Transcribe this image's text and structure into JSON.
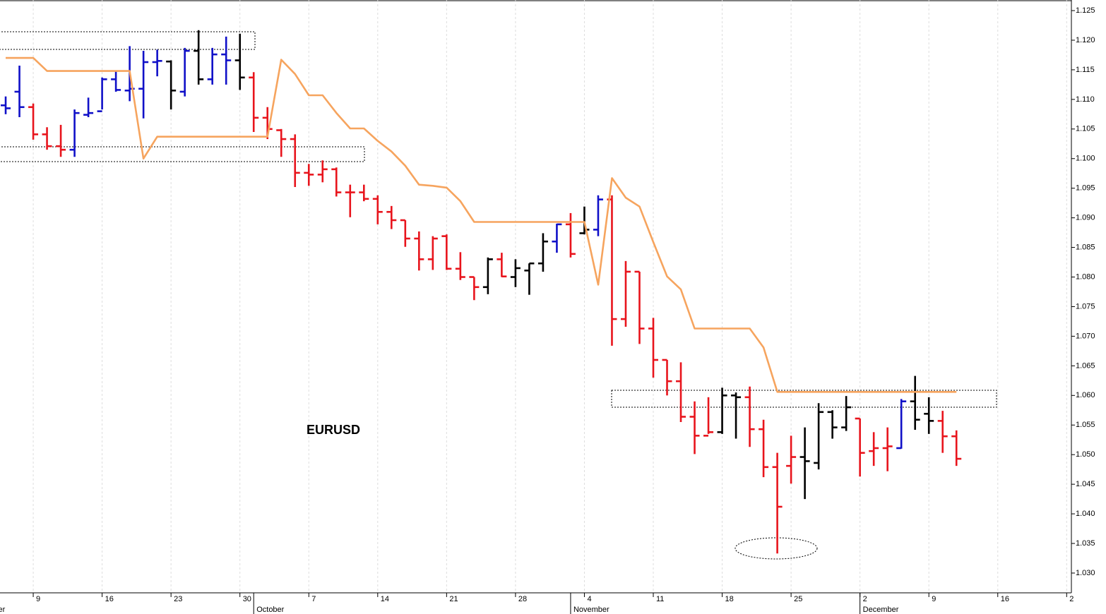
{
  "chart_data": {
    "type": "ohlc",
    "annotation": "EURUSD",
    "categories": [
      null,
      null,
      null,
      null,
      null,
      "9",
      null,
      null,
      null,
      null,
      "16",
      null,
      null,
      null,
      null,
      "23",
      null,
      null,
      null,
      null,
      "30",
      null,
      null,
      null,
      null,
      "7",
      null,
      null,
      null,
      null,
      "14",
      null,
      null,
      null,
      null,
      "21",
      null,
      null,
      null,
      null,
      "28",
      null,
      null,
      null,
      null,
      "4",
      null,
      null,
      null,
      null,
      "11",
      null,
      null,
      null,
      null,
      "18",
      null,
      null,
      null,
      null,
      "25",
      null,
      null,
      null,
      null,
      "2",
      null,
      null,
      null,
      null,
      "9",
      null,
      null,
      null,
      null,
      "16",
      null,
      null,
      null,
      null,
      "2"
    ],
    "month_labels": [
      "September",
      null,
      null,
      null,
      null,
      null,
      null,
      null,
      null,
      null,
      null,
      null,
      null,
      null,
      null,
      null,
      null,
      null,
      null,
      null,
      null,
      "October",
      null,
      null,
      null,
      null,
      null,
      null,
      null,
      null,
      null,
      null,
      null,
      null,
      null,
      null,
      null,
      null,
      null,
      null,
      null,
      null,
      null,
      null,
      "November",
      null,
      null,
      null,
      null,
      null,
      null,
      null,
      null,
      null,
      null,
      null,
      null,
      null,
      null,
      null,
      null,
      null,
      null,
      null,
      null,
      "December",
      null,
      null,
      null,
      null,
      null,
      null,
      null,
      null,
      null,
      null,
      null,
      null,
      null,
      null,
      null
    ],
    "open": [
      null,
      null,
      null,
      1.109,
      1.1113,
      1.1087,
      1.1041,
      1.1021,
      1.1015,
      1.1074,
      1.108,
      1.1134,
      1.1115,
      1.1118,
      1.1163,
      1.1164,
      1.1113,
      1.1182,
      1.1134,
      1.1176,
      1.1166,
      1.1137,
      1.1069,
      1.1048,
      1.1033,
      1.0976,
      1.0973,
      1.0982,
      1.0943,
      1.0943,
      1.0932,
      1.091,
      1.0896,
      1.0865,
      1.083,
      1.0869,
      1.0814,
      1.08,
      1.0783,
      1.083,
      1.08,
      1.0811,
      1.0823,
      1.086,
      1.0889,
      1.0874,
      1.088,
      1.0931,
      1.0729,
      1.0809,
      1.0713,
      1.066,
      1.0624,
      1.0564,
      1.0532,
      1.0538,
      1.06,
      1.0597,
      1.0543,
      1.0479,
      1.0481,
      1.0496,
      1.0486,
      1.0572,
      1.0546,
      1.0561,
      1.0506,
      1.0511,
      1.0511,
      1.059,
      1.0569,
      1.0557,
      1.0531,
      null,
      null,
      null,
      null,
      null,
      null,
      null,
      null
    ],
    "high": [
      null,
      null,
      null,
      1.1105,
      1.1157,
      1.1093,
      1.1053,
      1.1057,
      1.1083,
      1.1103,
      1.1137,
      1.1149,
      1.119,
      1.1182,
      1.1184,
      1.1166,
      1.1187,
      1.1217,
      1.1187,
      1.1206,
      1.1211,
      1.1146,
      1.1087,
      1.105,
      1.1041,
      1.0991,
      1.0997,
      1.0985,
      1.0956,
      1.0956,
      1.0938,
      1.092,
      1.0896,
      1.0877,
      1.0869,
      1.0872,
      1.0842,
      1.08,
      1.0833,
      1.0841,
      1.083,
      1.0823,
      1.0874,
      1.089,
      1.0908,
      1.0919,
      1.0938,
      1.0938,
      1.0827,
      1.0809,
      1.0731,
      1.066,
      1.0656,
      1.059,
      1.0597,
      1.0613,
      1.0605,
      1.0615,
      1.0559,
      1.0503,
      1.0532,
      1.0546,
      1.0587,
      1.0575,
      1.0599,
      1.0561,
      1.0538,
      1.0546,
      1.0594,
      1.0633,
      1.0597,
      1.0574,
      1.0541,
      null,
      null,
      null,
      null,
      null,
      null,
      null,
      null
    ],
    "low": [
      null,
      null,
      null,
      1.1075,
      1.107,
      1.1032,
      1.1015,
      1.1003,
      1.1003,
      1.107,
      1.1083,
      1.1113,
      1.1097,
      1.1068,
      1.1139,
      1.1083,
      1.1105,
      1.1125,
      1.1125,
      1.1125,
      1.1116,
      1.1045,
      1.1033,
      1.1003,
      1.0952,
      1.0954,
      1.096,
      1.0936,
      1.0901,
      1.0928,
      1.0889,
      1.0881,
      1.0851,
      1.0811,
      1.0812,
      1.0812,
      1.0795,
      1.0761,
      1.0771,
      1.08,
      1.0783,
      1.077,
      1.0809,
      1.0841,
      1.0833,
      1.0872,
      1.0869,
      1.0684,
      1.0716,
      1.0687,
      1.063,
      1.06,
      1.0555,
      1.0501,
      1.0535,
      1.0535,
      1.0527,
      1.0513,
      1.0462,
      1.0333,
      1.0451,
      1.0425,
      1.0475,
      1.0527,
      1.054,
      1.0463,
      1.0481,
      1.0472,
      1.051,
      1.0542,
      1.0535,
      1.0503,
      1.0481,
      null,
      null,
      null,
      null,
      null,
      null,
      null,
      null
    ],
    "close": [
      null,
      null,
      null,
      1.1085,
      1.1087,
      1.1041,
      1.1021,
      1.1015,
      1.1077,
      1.1077,
      1.1134,
      1.1116,
      1.1118,
      1.1163,
      1.1165,
      1.1115,
      1.1182,
      1.1134,
      1.1176,
      1.1166,
      1.1137,
      1.1069,
      1.105,
      1.1033,
      1.0976,
      1.0973,
      1.0982,
      1.0943,
      1.0943,
      1.0932,
      1.091,
      1.0896,
      1.0865,
      1.083,
      1.0865,
      1.0814,
      1.08,
      1.0783,
      1.083,
      1.0801,
      1.0815,
      1.0823,
      1.086,
      1.0889,
      1.0839,
      1.088,
      1.0931,
      1.0729,
      1.0809,
      1.0713,
      1.066,
      1.0624,
      1.0564,
      1.0532,
      1.0538,
      1.06,
      1.0597,
      1.0543,
      1.0479,
      1.0412,
      1.0496,
      1.0489,
      1.0572,
      1.0546,
      1.058,
      1.0503,
      1.0511,
      1.0514,
      1.059,
      1.0559,
      1.0557,
      1.0531,
      1.0493,
      null,
      null,
      null,
      null,
      null,
      null,
      null,
      null
    ],
    "colors": [
      null,
      null,
      null,
      "#1010c8",
      "#1010c8",
      "#e8141c",
      "#e8141c",
      "#e8141c",
      "#1010c8",
      "#1010c8",
      "#1010c8",
      "#1010c8",
      "#1010c8",
      "#1010c8",
      "#1010c8",
      "#000000",
      "#1010c8",
      "#000000",
      "#1010c8",
      "#1010c8",
      "#000000",
      "#e8141c",
      "#e8141c",
      "#e8141c",
      "#e8141c",
      "#e8141c",
      "#e8141c",
      "#e8141c",
      "#e8141c",
      "#e8141c",
      "#e8141c",
      "#e8141c",
      "#e8141c",
      "#e8141c",
      "#e8141c",
      "#e8141c",
      "#e8141c",
      "#e8141c",
      "#000000",
      "#e8141c",
      "#000000",
      "#000000",
      "#000000",
      "#1010c8",
      "#e8141c",
      "#000000",
      "#1010c8",
      "#e8141c",
      "#e8141c",
      "#e8141c",
      "#e8141c",
      "#e8141c",
      "#e8141c",
      "#e8141c",
      "#e8141c",
      "#000000",
      "#000000",
      "#e8141c",
      "#e8141c",
      "#e8141c",
      "#e8141c",
      "#000000",
      "#000000",
      "#000000",
      "#000000",
      "#e8141c",
      "#e8141c",
      "#e8141c",
      "#1010c8",
      "#000000",
      "#000000",
      "#e8141c",
      "#e8141c",
      null,
      null,
      null,
      null,
      null,
      null,
      null,
      null
    ],
    "line": {
      "color": "#f6a45e",
      "values": [
        null,
        null,
        null,
        1.117,
        1.117,
        1.117,
        1.1148,
        1.1148,
        1.1148,
        1.1148,
        1.1148,
        1.1148,
        1.1148,
        1.1,
        1.1037,
        1.1037,
        1.1037,
        1.1037,
        1.1037,
        1.1037,
        1.1037,
        1.1037,
        1.1037,
        1.1167,
        1.1143,
        1.1107,
        1.1107,
        1.1077,
        1.1051,
        1.1051,
        1.103,
        1.1012,
        1.0988,
        1.0956,
        1.0954,
        1.0951,
        1.0928,
        1.0893,
        1.0893,
        1.0893,
        1.0893,
        1.0893,
        1.0893,
        1.0893,
        1.0893,
        1.0893,
        1.0787,
        1.0967,
        1.0934,
        1.0919,
        1.0859,
        1.0801,
        1.0779,
        1.0713,
        1.0713,
        1.0713,
        1.0713,
        1.0713,
        1.0681,
        1.0606,
        1.0606,
        1.0606,
        1.0606,
        1.0606,
        1.0606,
        1.0606,
        1.0606,
        1.0606,
        1.0606,
        1.0606,
        1.0606,
        1.0606,
        1.0606,
        null,
        null,
        null,
        null,
        null,
        null,
        null,
        null
      ]
    },
    "ylim": [
      1.02666,
      1.12679
    ],
    "yticks": [
      {
        "value": 1.03,
        "label": "1.030"
      },
      {
        "value": 1.035,
        "label": "1.035"
      },
      {
        "value": 1.04,
        "label": "1.040"
      },
      {
        "value": 1.045,
        "label": "1.045"
      },
      {
        "value": 1.05,
        "label": "1.050"
      },
      {
        "value": 1.055,
        "label": "1.055"
      },
      {
        "value": 1.06,
        "label": "1.060"
      },
      {
        "value": 1.065,
        "label": "1.065"
      },
      {
        "value": 1.07,
        "label": "1.070"
      },
      {
        "value": 1.075,
        "label": "1.075"
      },
      {
        "value": 1.08,
        "label": "1.080"
      },
      {
        "value": 1.085,
        "label": "1.085"
      },
      {
        "value": 1.09,
        "label": "1.090"
      },
      {
        "value": 1.095,
        "label": "1.095"
      },
      {
        "value": 1.1,
        "label": "1.100"
      },
      {
        "value": 1.105,
        "label": "1.105"
      },
      {
        "value": 1.11,
        "label": "1.110"
      },
      {
        "value": 1.115,
        "label": "1.115"
      },
      {
        "value": 1.12,
        "label": "1.120"
      },
      {
        "value": 1.125,
        "label": "1.125"
      }
    ],
    "grid": true
  }
}
